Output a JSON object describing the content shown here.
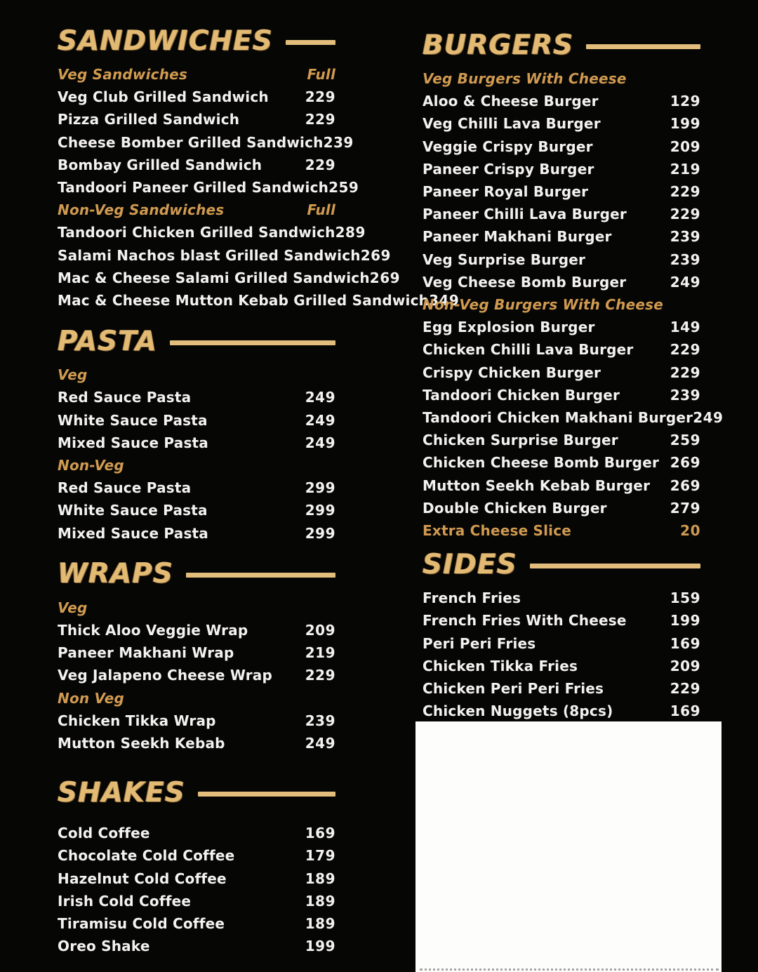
{
  "page": {
    "colors": {
      "background": "#060605",
      "heading_gold": "#e3ba73",
      "subheading_gold": "#d09a50",
      "item_white": "#f3f2ef",
      "rule_gold": "#e3bd7c",
      "panel_white": "#fdfdfc"
    }
  },
  "columns": {
    "left": {
      "sections": [
        {
          "title": "SANDWICHES",
          "groups": [
            {
              "label": "Veg Sandwiches",
              "price_label": "Full",
              "items": [
                {
                  "name": "Veg Club Grilled Sandwich",
                  "price": "229"
                },
                {
                  "name": "Pizza Grilled Sandwich",
                  "price": "229"
                },
                {
                  "name": "Cheese Bomber Grilled Sandwich",
                  "price": "239"
                },
                {
                  "name": "Bombay Grilled Sandwich",
                  "price": "229"
                },
                {
                  "name": "Tandoori Paneer Grilled Sandwich",
                  "price": "259"
                }
              ]
            },
            {
              "label": "Non-Veg Sandwiches",
              "price_label": "Full",
              "items": [
                {
                  "name": "Tandoori Chicken Grilled Sandwich",
                  "price": "289"
                },
                {
                  "name": "Salami Nachos blast Grilled Sandwich",
                  "price": "269"
                },
                {
                  "name": "Mac & Cheese Salami Grilled Sandwich",
                  "price": "269"
                },
                {
                  "name": "Mac & Cheese Mutton Kebab Grilled Sandwich",
                  "price": "349"
                }
              ]
            }
          ]
        },
        {
          "title": "PASTA",
          "groups": [
            {
              "label": "Veg",
              "items": [
                {
                  "name": "Red Sauce Pasta",
                  "price": "249"
                },
                {
                  "name": "White Sauce Pasta",
                  "price": "249"
                },
                {
                  "name": "Mixed Sauce Pasta",
                  "price": "249"
                }
              ]
            },
            {
              "label": "Non-Veg",
              "items": [
                {
                  "name": "Red Sauce Pasta",
                  "price": "299"
                },
                {
                  "name": "White Sauce Pasta",
                  "price": "299"
                },
                {
                  "name": "Mixed Sauce Pasta",
                  "price": "299"
                }
              ]
            }
          ]
        },
        {
          "title": "WRAPS",
          "groups": [
            {
              "label": "Veg",
              "items": [
                {
                  "name": "Thick Aloo Veggie Wrap",
                  "price": "209"
                },
                {
                  "name": "Paneer Makhani Wrap",
                  "price": "219"
                },
                {
                  "name": "Veg Jalapeno Cheese Wrap",
                  "price": "229"
                }
              ]
            },
            {
              "label": "Non Veg",
              "items": [
                {
                  "name": "Chicken Tikka Wrap",
                  "price": "239"
                },
                {
                  "name": "Mutton Seekh Kebab",
                  "price": "249"
                }
              ]
            }
          ]
        },
        {
          "title": "SHAKES",
          "groups": [
            {
              "items": [
                {
                  "name": "Cold Coffee",
                  "price": "169"
                },
                {
                  "name": "Chocolate Cold Coffee",
                  "price": "179"
                },
                {
                  "name": "Hazelnut Cold Coffee",
                  "price": "189"
                },
                {
                  "name": "Irish Cold Coffee",
                  "price": "189"
                },
                {
                  "name": "Tiramisu Cold Coffee",
                  "price": "189"
                },
                {
                  "name": "Oreo Shake",
                  "price": "199"
                }
              ]
            }
          ]
        }
      ]
    },
    "right": {
      "sections": [
        {
          "title": "BURGERS",
          "groups": [
            {
              "label": "Veg Burgers With Cheese",
              "items": [
                {
                  "name": "Aloo & Cheese Burger",
                  "price": "129"
                },
                {
                  "name": "Veg Chilli Lava Burger",
                  "price": "199"
                },
                {
                  "name": "Veggie Crispy Burger",
                  "price": "209"
                },
                {
                  "name": "Paneer Crispy Burger",
                  "price": "219"
                },
                {
                  "name": "Paneer Royal Burger",
                  "price": "229"
                },
                {
                  "name": "Paneer Chilli Lava Burger",
                  "price": "229"
                },
                {
                  "name": "Paneer Makhani Burger",
                  "price": "239"
                },
                {
                  "name": "Veg Surprise Burger",
                  "price": "239"
                },
                {
                  "name": "Veg Cheese Bomb Burger",
                  "price": "249"
                }
              ]
            },
            {
              "label": "Non-Veg Burgers With Cheese",
              "items": [
                {
                  "name": "Egg Explosion Burger",
                  "price": "149"
                },
                {
                  "name": "Chicken Chilli Lava Burger",
                  "price": "229"
                },
                {
                  "name": "Crispy Chicken Burger",
                  "price": "229"
                },
                {
                  "name": "Tandoori Chicken Burger",
                  "price": "239"
                },
                {
                  "name": "Tandoori Chicken Makhani Burger",
                  "price": "249"
                },
                {
                  "name": "Chicken Surprise Burger",
                  "price": "259"
                },
                {
                  "name": "Chicken Cheese Bomb Burger",
                  "price": "269"
                },
                {
                  "name": "Mutton Seekh Kebab Burger",
                  "price": "269"
                },
                {
                  "name": "Double Chicken Burger",
                  "price": "279"
                },
                {
                  "name": "Extra Cheese Slice",
                  "price": "20",
                  "highlight": true
                }
              ]
            }
          ]
        },
        {
          "title": "SIDES",
          "groups": [
            {
              "items": [
                {
                  "name": "French Fries",
                  "price": "159"
                },
                {
                  "name": "French Fries With Cheese",
                  "price": "199"
                },
                {
                  "name": "Peri Peri Fries",
                  "price": "169"
                },
                {
                  "name": "Chicken Tikka Fries",
                  "price": "209"
                },
                {
                  "name": "Chicken Peri Peri Fries",
                  "price": "229"
                },
                {
                  "name": "Chicken Nuggets (8pcs)",
                  "price": "169"
                }
              ]
            }
          ]
        }
      ]
    }
  }
}
